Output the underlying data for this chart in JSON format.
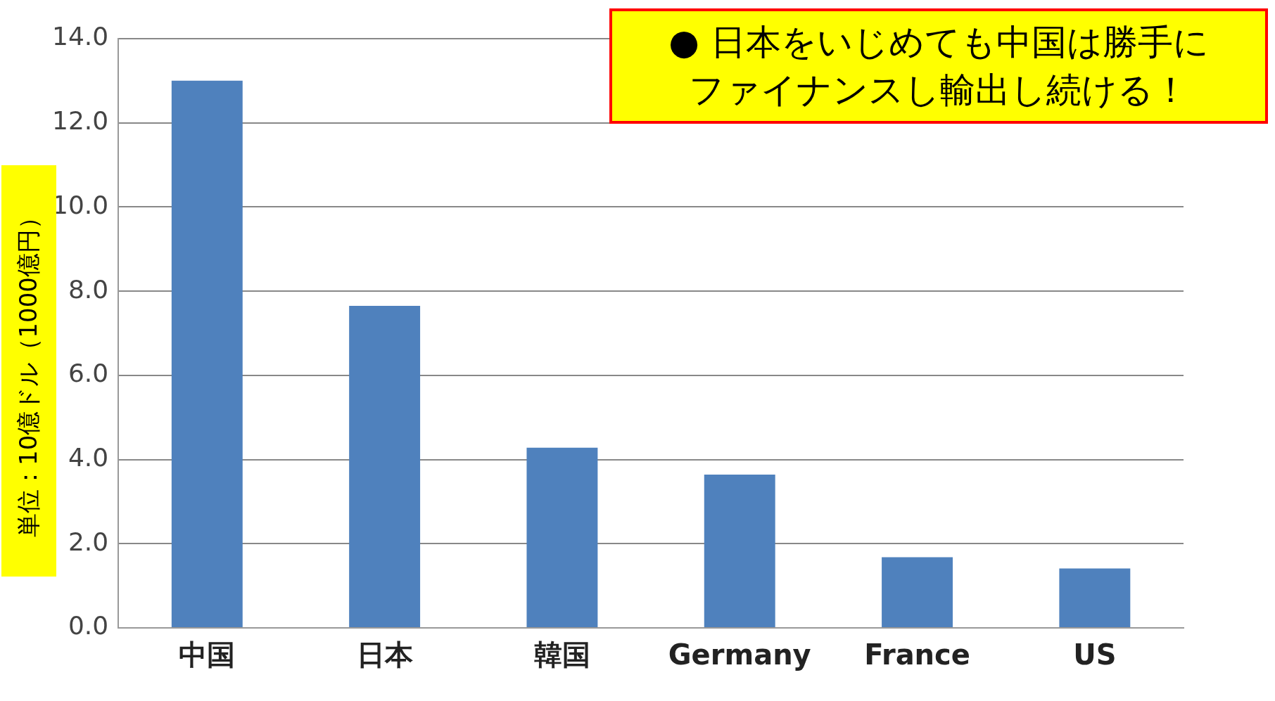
{
  "chart_data": {
    "type": "bar",
    "ylabel": "単位：10億ドル（1000億円）",
    "annotations": [
      "● 日本をいじめても中国は勝手に",
      "ファイナンスし輸出し続ける！"
    ],
    "categories": [
      "中国",
      "日本",
      "韓国",
      "Germany",
      "France",
      "US"
    ],
    "values": [
      13.0,
      7.65,
      4.28,
      3.64,
      1.68,
      1.41
    ],
    "color": "#4f81bd",
    "ylim": [
      0,
      14
    ],
    "yticks": [
      {
        "value": 0,
        "label": "0.0"
      },
      {
        "value": 2,
        "label": "2.0"
      },
      {
        "value": 4,
        "label": "4.0"
      },
      {
        "value": 6,
        "label": "6.0"
      },
      {
        "value": 8,
        "label": "8.0"
      },
      {
        "value": 10,
        "label": "10.0"
      },
      {
        "value": 12,
        "label": "12.0"
      },
      {
        "value": 14,
        "label": "14.0"
      }
    ],
    "grid": "y"
  }
}
